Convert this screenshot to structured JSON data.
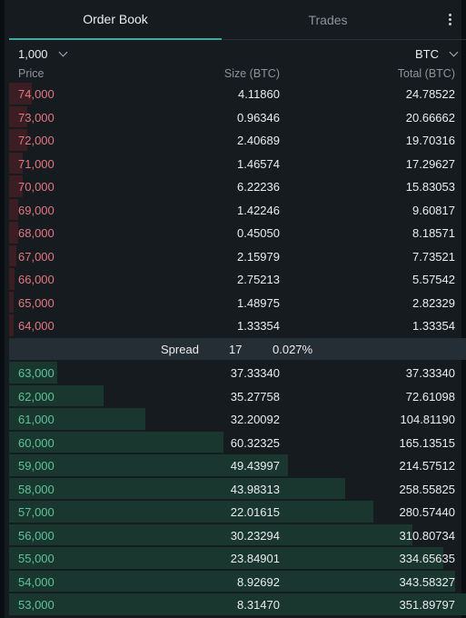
{
  "tabs": {
    "order_book": "Order Book",
    "trades": "Trades"
  },
  "controls": {
    "grouping": "1,000",
    "unit": "BTC"
  },
  "headers": {
    "price": "Price",
    "size": "Size (BTC)",
    "total": "Total (BTC)"
  },
  "spread": {
    "label": "Spread",
    "value": "17",
    "percent": "0.027%"
  },
  "colors": {
    "ask": "#e5767f",
    "bid": "#5dc499",
    "ask_bar": "#3a1e24",
    "bid_bar": "#19362f",
    "accent": "#3ea99f"
  },
  "asks": [
    {
      "price": "74,000",
      "size": "4.11860",
      "total": "24.78522",
      "depth": 0.05
    },
    {
      "price": "73,000",
      "size": "0.96346",
      "total": "20.66662",
      "depth": 0.04
    },
    {
      "price": "72,000",
      "size": "2.40689",
      "total": "19.70316",
      "depth": 0.04
    },
    {
      "price": "71,000",
      "size": "1.46574",
      "total": "17.29627",
      "depth": 0.03
    },
    {
      "price": "70,000",
      "size": "6.22236",
      "total": "15.83053",
      "depth": 0.03
    },
    {
      "price": "69,000",
      "size": "1.42246",
      "total": "9.60817",
      "depth": 0.02
    },
    {
      "price": "68,000",
      "size": "0.45050",
      "total": "8.18571",
      "depth": 0.02
    },
    {
      "price": "67,000",
      "size": "2.15979",
      "total": "7.73521",
      "depth": 0.015
    },
    {
      "price": "66,000",
      "size": "2.75213",
      "total": "5.57542",
      "depth": 0.012
    },
    {
      "price": "65,000",
      "size": "1.48975",
      "total": "2.82329",
      "depth": 0.008
    },
    {
      "price": "64,000",
      "size": "1.33354",
      "total": "1.33354",
      "depth": 0.004
    }
  ],
  "bids": [
    {
      "price": "63,000",
      "size": "37.33340",
      "total": "37.33340",
      "depth": 0.106
    },
    {
      "price": "62,000",
      "size": "35.27758",
      "total": "72.61098",
      "depth": 0.206
    },
    {
      "price": "61,000",
      "size": "32.20092",
      "total": "104.81190",
      "depth": 0.298
    },
    {
      "price": "60,000",
      "size": "60.32325",
      "total": "165.13515",
      "depth": 0.469
    },
    {
      "price": "59,000",
      "size": "49.43997",
      "total": "214.57512",
      "depth": 0.61
    },
    {
      "price": "58,000",
      "size": "43.98313",
      "total": "258.55825",
      "depth": 0.735
    },
    {
      "price": "57,000",
      "size": "22.01615",
      "total": "280.57440",
      "depth": 0.797
    },
    {
      "price": "56,000",
      "size": "30.23294",
      "total": "310.80734",
      "depth": 0.883
    },
    {
      "price": "55,000",
      "size": "23.84901",
      "total": "334.65635",
      "depth": 0.951
    },
    {
      "price": "54,000",
      "size": "8.92692",
      "total": "343.58327",
      "depth": 0.976
    },
    {
      "price": "53,000",
      "size": "8.31470",
      "total": "351.89797",
      "depth": 1.0
    }
  ]
}
